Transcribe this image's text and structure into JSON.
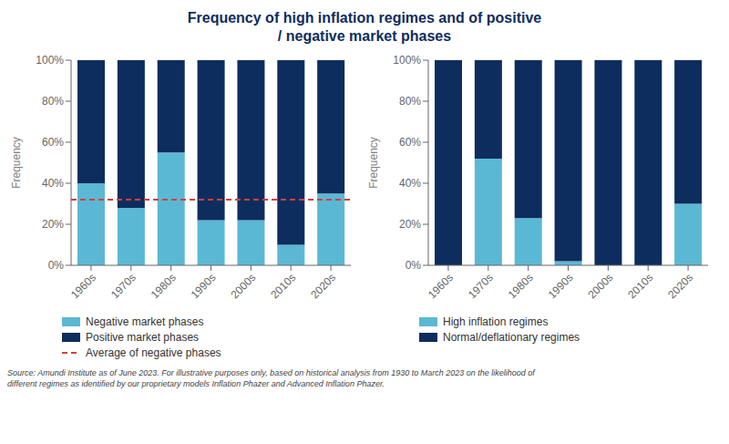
{
  "title": "Frequency of high inflation regimes and of positive\n / negative market phases",
  "annotations": [
    "Source: Amundi Institute as of June 2023. For illustrative purposes only, based on historical analysis from 1930 to March 2023 on the likelihood of\ndifferent regimes as identified by our proprietary models Inflation Phazer and Advanced Inflation Phazer."
  ],
  "chart_data": [
    {
      "type": "bar",
      "stacked": true,
      "grid": false,
      "legend": "bottom",
      "categories": [
        "1960s",
        "1970s",
        "1980s",
        "1990s",
        "2000s",
        "2010s",
        "2020s"
      ],
      "y_label": "Frequency",
      "ylim": [
        0,
        100
      ],
      "yticks": [
        {
          "value": 0,
          "label": "0%"
        },
        {
          "value": 20,
          "label": "20%"
        },
        {
          "value": 40,
          "label": "40%"
        },
        {
          "value": 60,
          "label": "60%"
        },
        {
          "value": 80,
          "label": "80%"
        },
        {
          "value": 100,
          "label": "100%"
        }
      ],
      "series": [
        {
          "name": "Negative market phases",
          "color": "#5BB8D4",
          "values": [
            40,
            28,
            55,
            22,
            22,
            10,
            35
          ]
        },
        {
          "name": "Positive market phases",
          "color": "#0D2D5E",
          "values": [
            60,
            72,
            45,
            78,
            78,
            90,
            65
          ]
        }
      ],
      "reference_lines": [
        {
          "name": "Average of negative phases",
          "value": 32,
          "color": "#D04040",
          "line_style": "dashed"
        }
      ]
    },
    {
      "type": "bar",
      "stacked": true,
      "grid": false,
      "legend": "bottom",
      "categories": [
        "1960s",
        "1970s",
        "1980s",
        "1990s",
        "2000s",
        "2010s",
        "2020s"
      ],
      "y_label": "Frequency",
      "ylim": [
        0,
        100
      ],
      "yticks": [
        {
          "value": 0,
          "label": "0%"
        },
        {
          "value": 20,
          "label": "20%"
        },
        {
          "value": 40,
          "label": "40%"
        },
        {
          "value": 60,
          "label": "60%"
        },
        {
          "value": 80,
          "label": "80%"
        },
        {
          "value": 100,
          "label": "100%"
        }
      ],
      "series": [
        {
          "name": "High inflation regimes",
          "color": "#5BB8D4",
          "values": [
            0,
            52,
            23,
            2,
            0,
            0,
            30
          ]
        },
        {
          "name": "Normal/deflationary regimes",
          "color": "#0D2D5E",
          "values": [
            100,
            48,
            77,
            98,
            100,
            100,
            70
          ]
        }
      ]
    }
  ]
}
